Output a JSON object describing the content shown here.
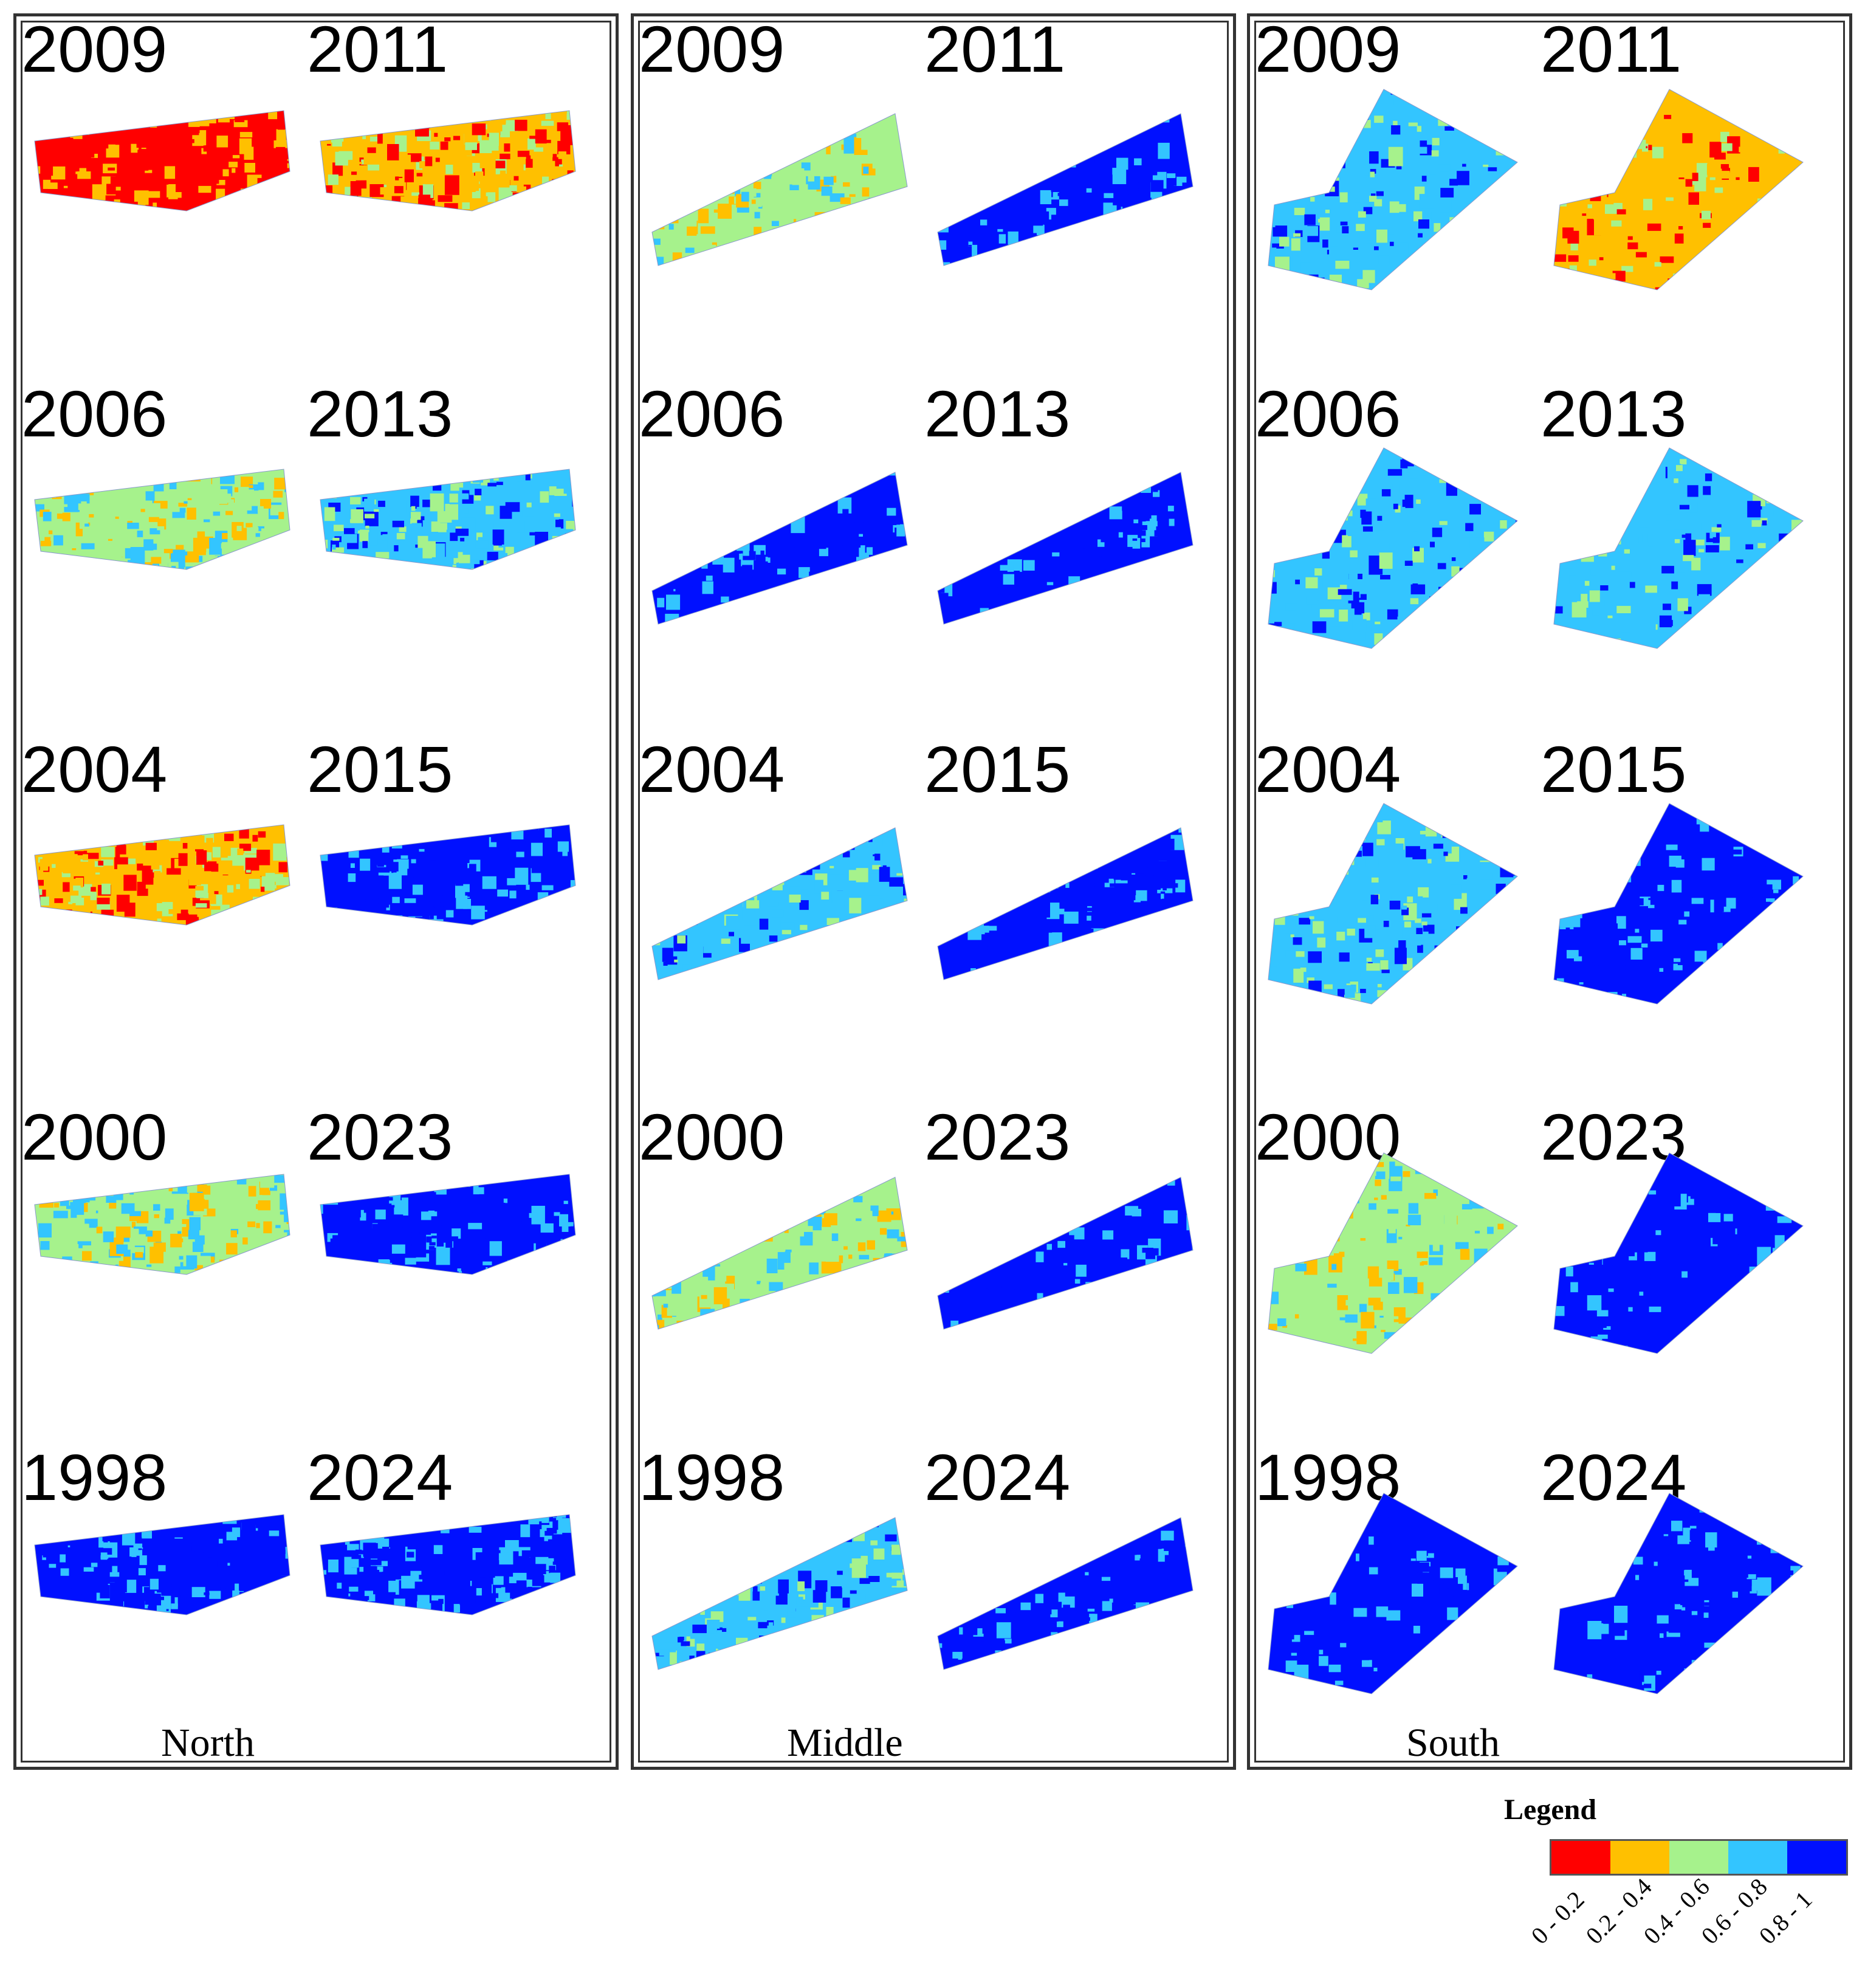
{
  "colors": {
    "class_0_0.2": "#ff0000",
    "class_0.2_0.4": "#ffc000",
    "class_0.4_0.6": "#a6f28c",
    "class_0.6_0.8": "#33c5ff",
    "class_0.8_1": "#0010ff"
  },
  "panels": [
    {
      "region": "North",
      "years": [
        "2009",
        "2011",
        "2006",
        "2013",
        "2004",
        "2015",
        "2000",
        "2023",
        "1998",
        "2024"
      ],
      "dominant_class": [
        "0 - 0.2",
        "0.2 - 0.4",
        "0.4 - 0.6",
        "0.6 - 0.8",
        "0.2 - 0.4",
        "0.8 - 1",
        "0.4 - 0.6",
        "0.8 - 1",
        "0.8 - 1",
        "0.8 - 1"
      ]
    },
    {
      "region": "Middle",
      "years": [
        "2009",
        "2011",
        "2006",
        "2013",
        "2004",
        "2015",
        "2000",
        "2023",
        "1998",
        "2024"
      ],
      "dominant_class": [
        "0.4 - 0.6",
        "0.8 - 1",
        "0.8 - 1",
        "0.8 - 1",
        "0.6 - 0.8",
        "0.8 - 1",
        "0.4 - 0.6",
        "0.8 - 1",
        "0.6 - 0.8",
        "0.8 - 1"
      ]
    },
    {
      "region": "South",
      "years": [
        "2009",
        "2011",
        "2006",
        "2013",
        "2004",
        "2015",
        "2000",
        "2023",
        "1998",
        "2024"
      ],
      "dominant_class": [
        "0.6 - 0.8",
        "0.2 - 0.4",
        "0.6 - 0.8",
        "0.6 - 0.8",
        "0.6 - 0.8",
        "0.8 - 1",
        "0.4 - 0.6",
        "0.8 - 1",
        "0.8 - 1",
        "0.8 - 1"
      ]
    }
  ],
  "legend": {
    "title": "Legend",
    "classes": [
      "0 - 0.2",
      "0.2 - 0.4",
      "0.4 - 0.6",
      "0.6 - 0.8",
      "0.8 - 1"
    ]
  }
}
